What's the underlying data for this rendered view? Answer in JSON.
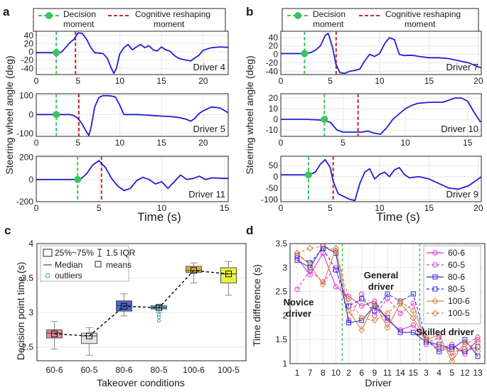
{
  "panels": {
    "a": "a",
    "b": "b",
    "c": "c",
    "d": "d"
  },
  "legend_ab": {
    "decision": "Decision",
    "decision2": "moment",
    "cognitive": "Cognitive reshaping",
    "cognitive2": "moment"
  },
  "colors": {
    "trace": "#1f1fd6",
    "decision": "#3cc45a",
    "cognitive": "#c82828",
    "grid": "#e6e6e6"
  },
  "chart_data": [
    {
      "id": "a",
      "type": "line",
      "ylabel": "Steering wheel angle (deg)",
      "xlabel": "Time (s)",
      "subplots": [
        {
          "driver": "Driver 4",
          "xlim": [
            0,
            23
          ],
          "ylim": [
            -55,
            50
          ],
          "xticks": [
            0,
            5,
            10,
            15,
            20
          ],
          "yticks": [
            -40,
            -20,
            0,
            20,
            40
          ],
          "decision_time": 2.4,
          "decision_value": -2,
          "reshape_time": 4.7,
          "x": [
            0,
            1,
            2,
            2.4,
            3,
            3.5,
            4,
            4.5,
            5,
            5.5,
            6,
            6.5,
            7,
            7.5,
            8,
            8.5,
            9,
            9.3,
            9.6,
            10,
            10.5,
            11,
            11.5,
            12,
            12.5,
            13,
            13.5,
            14,
            14.5,
            15,
            15.5,
            16,
            16.5,
            17,
            17.5,
            18,
            18.5,
            19,
            19.5,
            20,
            21,
            22,
            23
          ],
          "y": [
            -2,
            -2,
            -2,
            -2,
            -1,
            10,
            22,
            30,
            46,
            45,
            32,
            12,
            -2,
            -3,
            -4,
            -15,
            -40,
            -52,
            -40,
            -5,
            10,
            18,
            5,
            12,
            18,
            10,
            15,
            5,
            2,
            12,
            5,
            2,
            -8,
            -15,
            -18,
            -20,
            -22,
            -15,
            -8,
            4,
            10,
            12,
            11
          ]
        },
        {
          "driver": "Driver 5",
          "xlim": [
            0,
            23
          ],
          "ylim": [
            -115,
            110
          ],
          "xticks": [
            0,
            5,
            10,
            15,
            20
          ],
          "yticks": [
            -100,
            0,
            100
          ],
          "decision_time": 2.4,
          "decision_value": 0,
          "reshape_time": 5.1,
          "x": [
            0,
            1,
            2,
            2.4,
            3,
            4,
            4.5,
            5,
            5.5,
            6,
            6.3,
            6.6,
            7,
            7.5,
            8,
            8.5,
            9,
            9.5,
            10,
            10.5,
            11,
            12,
            13,
            14,
            15,
            16,
            17,
            18,
            18.5,
            19,
            19.5,
            20,
            21,
            22,
            23
          ],
          "y": [
            0,
            0,
            0,
            0,
            0,
            0,
            -5,
            -20,
            -50,
            -90,
            -110,
            -60,
            40,
            90,
            100,
            100,
            98,
            92,
            50,
            0,
            0,
            0,
            -2,
            -5,
            -8,
            -10,
            -15,
            -25,
            -35,
            -20,
            5,
            20,
            40,
            35,
            10
          ]
        },
        {
          "driver": "Driver 11",
          "xlim": [
            0,
            15.3
          ],
          "ylim": [
            -200,
            210
          ],
          "xticks": [
            0,
            5,
            10,
            15
          ],
          "yticks": [
            -200,
            0,
            200
          ],
          "decision_time": 3.3,
          "decision_value": 0,
          "reshape_time": 5.2,
          "x": [
            0,
            1,
            2,
            3,
            3.3,
            3.6,
            4,
            4.5,
            5,
            5.5,
            6,
            6.5,
            7,
            7.5,
            8,
            8.5,
            9,
            9.5,
            10,
            10.5,
            11,
            11.5,
            12,
            12.5,
            13,
            13.5,
            14,
            15,
            15.3
          ],
          "y": [
            0,
            0,
            0,
            0,
            0,
            10,
            50,
            130,
            170,
            110,
            10,
            -60,
            -100,
            -80,
            -10,
            20,
            0,
            -40,
            -20,
            -80,
            -20,
            40,
            0,
            10,
            30,
            0,
            15,
            10,
            10
          ]
        }
      ]
    },
    {
      "id": "b",
      "type": "line",
      "ylabel": "Steering wheel angle (deg)",
      "xlabel": "Time (s)",
      "subplots": [
        {
          "driver": "Driver 7",
          "xlim": [
            0,
            20.3
          ],
          "ylim": [
            -48,
            55
          ],
          "xticks": [
            0,
            5,
            10,
            15,
            20
          ],
          "yticks": [
            -40,
            -20,
            0,
            20,
            40
          ],
          "decision_time": 2.4,
          "decision_value": 2,
          "reshape_time": 5.6,
          "x": [
            0,
            1,
            2,
            2.4,
            3,
            3.5,
            4,
            4.5,
            4.8,
            5.2,
            5.6,
            6,
            6.5,
            7,
            7.5,
            8,
            8.5,
            9,
            9.5,
            10,
            10.5,
            11,
            11.5,
            12,
            12.5,
            13,
            13.5,
            14,
            15,
            16,
            17,
            18,
            19,
            20,
            20.3
          ],
          "y": [
            2,
            2,
            2,
            2,
            4,
            10,
            20,
            45,
            50,
            20,
            -25,
            -44,
            -45,
            -40,
            -38,
            -35,
            -15,
            0,
            -5,
            2,
            25,
            40,
            35,
            0,
            -3,
            -2,
            -3,
            -5,
            -8,
            -8,
            -10,
            -15,
            -20,
            -30,
            -32
          ]
        },
        {
          "driver": "Driver 10",
          "xlim": [
            0,
            16.1
          ],
          "ylim": [
            -16,
            24
          ],
          "xticks": [
            0,
            5,
            10,
            15
          ],
          "yticks": [
            -10,
            0,
            10,
            20
          ],
          "decision_time": 3.5,
          "decision_value": 0,
          "reshape_time": 6.2,
          "x": [
            0,
            1,
            2,
            3,
            3.5,
            4,
            4.5,
            5,
            5.5,
            6,
            6.5,
            7,
            7.5,
            8,
            8.5,
            9,
            9.5,
            10,
            10.5,
            11,
            12,
            13,
            14,
            14.5,
            15,
            15.5,
            16,
            16.1
          ],
          "y": [
            0,
            0,
            0,
            -0.5,
            -1,
            -3,
            -10,
            -12,
            -12,
            -12,
            -12,
            -11,
            -13,
            -14,
            -8,
            0,
            5,
            10,
            13,
            15,
            16,
            16,
            20,
            20,
            17,
            7,
            -2,
            -2
          ]
        },
        {
          "driver": "Driver 9",
          "xlim": [
            0,
            20.3
          ],
          "ylim": [
            -110,
            90
          ],
          "xticks": [
            0,
            5,
            10,
            15,
            20
          ],
          "yticks": [
            -100,
            -50,
            0,
            50
          ],
          "decision_time": 2.8,
          "decision_value": 8,
          "reshape_time": 5.3,
          "x": [
            0,
            1,
            2,
            2.8,
            3.5,
            4,
            4.5,
            5,
            5.3,
            5.8,
            6.5,
            7,
            7.5,
            8,
            8.5,
            9,
            9.5,
            10,
            10.5,
            11,
            11.5,
            12,
            12.5,
            13,
            14,
            15,
            16,
            17,
            18,
            19,
            20,
            20.3
          ],
          "y": [
            8,
            8,
            8,
            8,
            20,
            55,
            75,
            40,
            -20,
            -75,
            -90,
            -100,
            -105,
            -30,
            20,
            35,
            -10,
            10,
            20,
            0,
            30,
            40,
            10,
            -5,
            0,
            -10,
            -30,
            -50,
            -55,
            -40,
            -10,
            0
          ]
        }
      ]
    },
    {
      "id": "c",
      "type": "box",
      "xlabel": "Takeover conditions",
      "ylabel": "Decision point time (s)",
      "ylim": [
        2.3,
        4
      ],
      "yticks": [
        2.5,
        3,
        3.5,
        4
      ],
      "categories": [
        "60-6",
        "60-5",
        "80-6",
        "80-5",
        "100-6",
        "100-5"
      ],
      "q1": [
        2.63,
        2.55,
        3.02,
        3.05,
        3.58,
        3.43
      ],
      "q3": [
        2.75,
        2.7,
        3.17,
        3.1,
        3.67,
        3.65
      ],
      "median": [
        2.7,
        2.66,
        3.1,
        3.07,
        3.61,
        3.56
      ],
      "mean": [
        2.69,
        2.66,
        3.09,
        3.07,
        3.61,
        3.56
      ],
      "whisker_low": [
        2.47,
        2.38,
        2.95,
        3.0,
        3.43,
        3.25
      ],
      "whisker_high": [
        2.87,
        2.78,
        3.27,
        3.12,
        3.72,
        3.74
      ],
      "outliers": [
        [],
        [],
        [],
        [
          2.97,
          2.93,
          2.88
        ],
        [],
        []
      ],
      "fill_colors": [
        "#e58c96",
        "#e4e4e8",
        "#4a64d8",
        "#5ab0e8",
        "#dcb23a",
        "#eaf23a"
      ],
      "legend": {
        "iqr": "25%~75%",
        "range": "1.5 IQR",
        "median": "Median",
        "means": "means",
        "outliers": "outliers"
      }
    },
    {
      "id": "d",
      "type": "line",
      "xlabel": "Driver",
      "ylabel": "Time difference (s)",
      "ylim": [
        1,
        3.5
      ],
      "yticks": [
        1,
        1.5,
        2,
        2.5,
        3,
        3.5
      ],
      "categories": [
        "1",
        "7",
        "8",
        "10",
        "2",
        "6",
        "9",
        "11",
        "14",
        "15",
        "3",
        "4",
        "5",
        "12",
        "13"
      ],
      "group_separators_after": [
        3.5,
        9.5
      ],
      "annotations": {
        "novice": "Novice",
        "novice2": "driver",
        "general": "General",
        "general2": "driver",
        "skilled": "Skilled driver"
      },
      "series": [
        {
          "name": "60-6",
          "color": "#e632d6",
          "dash": "solid",
          "marker": "circle",
          "values": [
            3.2,
            2.85,
            3.3,
            2.6,
            2.4,
            2.2,
            2.3,
            1.9,
            1.7,
            1.8,
            1.5,
            1.3,
            1.4,
            1.2,
            1.5
          ]
        },
        {
          "name": "60-5",
          "color": "#e632d6",
          "dash": "dashed",
          "marker": "circle",
          "values": [
            2.55,
            2.95,
            2.7,
            3.0,
            1.9,
            2.45,
            2.0,
            2.35,
            2.05,
            2.25,
            1.4,
            1.55,
            1.15,
            1.4,
            1.55
          ]
        },
        {
          "name": "80-6",
          "color": "#2a2ad8",
          "dash": "solid",
          "marker": "square",
          "values": [
            3.15,
            3.0,
            3.45,
            3.3,
            1.85,
            1.9,
            2.2,
            1.95,
            1.65,
            1.65,
            1.45,
            1.4,
            1.3,
            1.5,
            1.15
          ]
        },
        {
          "name": "80-5",
          "color": "#2a2ad8",
          "dash": "dashed",
          "marker": "square",
          "values": [
            3.25,
            3.1,
            3.4,
            2.95,
            2.2,
            2.35,
            2.1,
            2.45,
            2.3,
            2.45,
            1.5,
            1.25,
            1.35,
            1.25,
            1.35
          ]
        },
        {
          "name": "100-6",
          "color": "#d6843a",
          "dash": "solid",
          "marker": "diamond",
          "values": [
            3.3,
            3.05,
            2.65,
            3.4,
            2.1,
            1.7,
            2.25,
            1.75,
            2.25,
            1.95,
            1.5,
            1.6,
            1.05,
            1.45,
            1.25
          ]
        },
        {
          "name": "100-5",
          "color": "#d6843a",
          "dash": "dashed",
          "marker": "diamond",
          "values": [
            3.3,
            3.4,
            3.45,
            3.35,
            2.35,
            1.95,
            1.9,
            2.05,
            2.3,
            2.1,
            1.55,
            1.35,
            1.25,
            1.3,
            1.45
          ]
        }
      ]
    }
  ]
}
